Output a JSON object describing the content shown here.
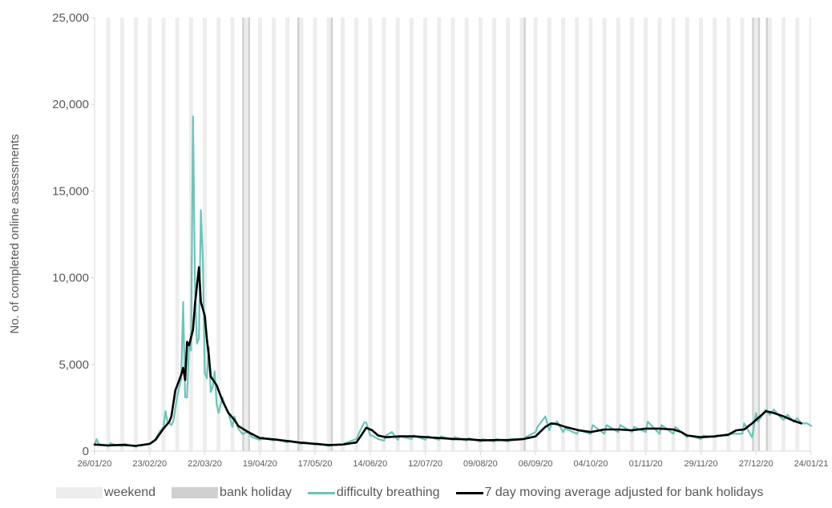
{
  "chart_data": {
    "type": "line",
    "ylabel": "No. of completed online assessments",
    "xlabel": "",
    "title": "",
    "ylim": [
      0,
      25000
    ],
    "yticks": [
      0,
      5000,
      10000,
      15000,
      20000,
      25000
    ],
    "ytick_labels": [
      "0",
      "5,000",
      "10,000",
      "15,000",
      "20,000",
      "25,000"
    ],
    "x_range": [
      "2020-01-26",
      "2021-01-24"
    ],
    "x_tick_dates": [
      "2020-01-26",
      "2020-02-23",
      "2020-03-22",
      "2020-04-19",
      "2020-05-17",
      "2020-06-14",
      "2020-07-12",
      "2020-08-09",
      "2020-09-06",
      "2020-10-04",
      "2020-11-01",
      "2020-11-29",
      "2020-12-27",
      "2021-01-24"
    ],
    "x_tick_labels": [
      "26/01/20",
      "23/02/20",
      "22/03/20",
      "19/04/20",
      "17/05/20",
      "14/06/20",
      "12/07/20",
      "09/08/20",
      "06/09/20",
      "04/10/20",
      "01/11/20",
      "29/11/20",
      "27/12/20",
      "24/01/21"
    ],
    "grid": false,
    "legend_position": "bottom",
    "weekend_shading": true,
    "bank_holidays": [
      "2020-04-10",
      "2020-04-13",
      "2020-05-08",
      "2020-05-25",
      "2020-08-31",
      "2020-12-25",
      "2020-12-28",
      "2021-01-01"
    ],
    "series": [
      {
        "name": "difficulty breathing",
        "color": "#6CC4BA",
        "points": [
          [
            "2020-01-26",
            350
          ],
          [
            "2020-01-27",
            700
          ],
          [
            "2020-01-28",
            420
          ],
          [
            "2020-01-29",
            380
          ],
          [
            "2020-02-02",
            300
          ],
          [
            "2020-02-03",
            450
          ],
          [
            "2020-02-05",
            380
          ],
          [
            "2020-02-09",
            300
          ],
          [
            "2020-02-10",
            420
          ],
          [
            "2020-02-16",
            260
          ],
          [
            "2020-02-17",
            350
          ],
          [
            "2020-02-19",
            330
          ],
          [
            "2020-02-23",
            400
          ],
          [
            "2020-02-24",
            500
          ],
          [
            "2020-02-26",
            700
          ],
          [
            "2020-02-28",
            1100
          ],
          [
            "2020-03-01",
            1400
          ],
          [
            "2020-03-02",
            2300
          ],
          [
            "2020-03-03",
            1700
          ],
          [
            "2020-03-05",
            1500
          ],
          [
            "2020-03-06",
            1700
          ],
          [
            "2020-03-08",
            3200
          ],
          [
            "2020-03-10",
            4200
          ],
          [
            "2020-03-11",
            8600
          ],
          [
            "2020-03-12",
            3100
          ],
          [
            "2020-03-13",
            3100
          ],
          [
            "2020-03-14",
            6200
          ],
          [
            "2020-03-15",
            5800
          ],
          [
            "2020-03-16",
            19300
          ],
          [
            "2020-03-17",
            9500
          ],
          [
            "2020-03-18",
            6200
          ],
          [
            "2020-03-19",
            6500
          ],
          [
            "2020-03-20",
            13900
          ],
          [
            "2020-03-21",
            11000
          ],
          [
            "2020-03-22",
            4500
          ],
          [
            "2020-03-23",
            4200
          ],
          [
            "2020-03-24",
            6000
          ],
          [
            "2020-03-25",
            3400
          ],
          [
            "2020-03-26",
            3700
          ],
          [
            "2020-03-27",
            4600
          ],
          [
            "2020-03-28",
            2700
          ],
          [
            "2020-03-29",
            2200
          ],
          [
            "2020-03-31",
            3100
          ],
          [
            "2020-04-01",
            2700
          ],
          [
            "2020-04-03",
            2200
          ],
          [
            "2020-04-05",
            1400
          ],
          [
            "2020-04-06",
            2000
          ],
          [
            "2020-04-08",
            1300
          ],
          [
            "2020-04-10",
            1000
          ],
          [
            "2020-04-13",
            1100
          ],
          [
            "2020-04-15",
            800
          ],
          [
            "2020-04-19",
            650
          ],
          [
            "2020-04-20",
            800
          ],
          [
            "2020-04-26",
            600
          ],
          [
            "2020-04-27",
            700
          ],
          [
            "2020-05-03",
            500
          ],
          [
            "2020-05-04",
            600
          ],
          [
            "2020-05-10",
            420
          ],
          [
            "2020-05-11",
            520
          ],
          [
            "2020-05-17",
            380
          ],
          [
            "2020-05-18",
            450
          ],
          [
            "2020-05-24",
            300
          ],
          [
            "2020-05-26",
            350
          ],
          [
            "2020-05-31",
            380
          ],
          [
            "2020-06-01",
            450
          ],
          [
            "2020-06-07",
            700
          ],
          [
            "2020-06-09",
            1200
          ],
          [
            "2020-06-11",
            1650
          ],
          [
            "2020-06-12",
            1650
          ],
          [
            "2020-06-14",
            900
          ],
          [
            "2020-06-15",
            900
          ],
          [
            "2020-06-18",
            700
          ],
          [
            "2020-06-21",
            600
          ],
          [
            "2020-06-22",
            900
          ],
          [
            "2020-06-25",
            1100
          ],
          [
            "2020-06-28",
            650
          ],
          [
            "2020-06-29",
            850
          ],
          [
            "2020-07-05",
            700
          ],
          [
            "2020-07-06",
            900
          ],
          [
            "2020-07-12",
            650
          ],
          [
            "2020-07-13",
            850
          ],
          [
            "2020-07-19",
            650
          ],
          [
            "2020-07-20",
            850
          ],
          [
            "2020-07-26",
            650
          ],
          [
            "2020-07-27",
            800
          ],
          [
            "2020-08-02",
            600
          ],
          [
            "2020-08-03",
            750
          ],
          [
            "2020-08-09",
            550
          ],
          [
            "2020-08-10",
            700
          ],
          [
            "2020-08-16",
            550
          ],
          [
            "2020-08-17",
            700
          ],
          [
            "2020-08-23",
            550
          ],
          [
            "2020-08-24",
            700
          ],
          [
            "2020-08-31",
            700
          ],
          [
            "2020-09-01",
            800
          ],
          [
            "2020-09-06",
            1100
          ],
          [
            "2020-09-07",
            1400
          ],
          [
            "2020-09-11",
            2000
          ],
          [
            "2020-09-13",
            1200
          ],
          [
            "2020-09-14",
            1500
          ],
          [
            "2020-09-17",
            1700
          ],
          [
            "2020-09-20",
            1100
          ],
          [
            "2020-09-21",
            1300
          ],
          [
            "2020-09-27",
            1000
          ],
          [
            "2020-09-28",
            1200
          ],
          [
            "2020-10-04",
            1000
          ],
          [
            "2020-10-05",
            1500
          ],
          [
            "2020-10-11",
            1000
          ],
          [
            "2020-10-12",
            1500
          ],
          [
            "2020-10-18",
            1100
          ],
          [
            "2020-10-19",
            1500
          ],
          [
            "2020-10-25",
            1100
          ],
          [
            "2020-10-26",
            1400
          ],
          [
            "2020-11-01",
            1100
          ],
          [
            "2020-11-02",
            1700
          ],
          [
            "2020-11-08",
            1000
          ],
          [
            "2020-11-09",
            1500
          ],
          [
            "2020-11-15",
            1000
          ],
          [
            "2020-11-16",
            1400
          ],
          [
            "2020-11-22",
            800
          ],
          [
            "2020-11-23",
            900
          ],
          [
            "2020-11-29",
            700
          ],
          [
            "2020-11-30",
            900
          ],
          [
            "2020-12-06",
            800
          ],
          [
            "2020-12-07",
            900
          ],
          [
            "2020-12-13",
            900
          ],
          [
            "2020-12-14",
            1000
          ],
          [
            "2020-12-20",
            1000
          ],
          [
            "2020-12-21",
            1600
          ],
          [
            "2020-12-25",
            800
          ],
          [
            "2020-12-26",
            1500
          ],
          [
            "2020-12-27",
            2200
          ],
          [
            "2020-12-28",
            1700
          ],
          [
            "2021-01-01",
            2400
          ],
          [
            "2021-01-03",
            2100
          ],
          [
            "2021-01-05",
            2400
          ],
          [
            "2021-01-08",
            2000
          ],
          [
            "2021-01-10",
            1800
          ],
          [
            "2021-01-12",
            2100
          ],
          [
            "2021-01-15",
            1700
          ],
          [
            "2021-01-17",
            1900
          ],
          [
            "2021-01-19",
            1600
          ],
          [
            "2021-01-22",
            1600
          ],
          [
            "2021-01-24",
            1450
          ]
        ]
      },
      {
        "name": "7 day moving average adjusted for bank holidays",
        "color": "#000000",
        "points": [
          [
            "2020-01-26",
            380
          ],
          [
            "2020-02-02",
            330
          ],
          [
            "2020-02-09",
            360
          ],
          [
            "2020-02-16",
            300
          ],
          [
            "2020-02-23",
            420
          ],
          [
            "2020-02-26",
            650
          ],
          [
            "2020-03-01",
            1300
          ],
          [
            "2020-03-04",
            1700
          ],
          [
            "2020-03-05",
            2000
          ],
          [
            "2020-03-07",
            3500
          ],
          [
            "2020-03-10",
            4400
          ],
          [
            "2020-03-11",
            4800
          ],
          [
            "2020-03-12",
            4100
          ],
          [
            "2020-03-13",
            6300
          ],
          [
            "2020-03-14",
            6100
          ],
          [
            "2020-03-16",
            7000
          ],
          [
            "2020-03-17",
            8500
          ],
          [
            "2020-03-19",
            10600
          ],
          [
            "2020-03-20",
            8600
          ],
          [
            "2020-03-22",
            7800
          ],
          [
            "2020-03-23",
            6500
          ],
          [
            "2020-03-24",
            5500
          ],
          [
            "2020-03-25",
            4300
          ],
          [
            "2020-03-28",
            3800
          ],
          [
            "2020-03-31",
            2900
          ],
          [
            "2020-04-03",
            2200
          ],
          [
            "2020-04-06",
            1800
          ],
          [
            "2020-04-08",
            1450
          ],
          [
            "2020-04-13",
            1100
          ],
          [
            "2020-04-19",
            750
          ],
          [
            "2020-04-26",
            680
          ],
          [
            "2020-05-03",
            580
          ],
          [
            "2020-05-10",
            480
          ],
          [
            "2020-05-17",
            420
          ],
          [
            "2020-05-24",
            350
          ],
          [
            "2020-05-31",
            380
          ],
          [
            "2020-06-07",
            500
          ],
          [
            "2020-06-10",
            1000
          ],
          [
            "2020-06-12",
            1350
          ],
          [
            "2020-06-15",
            1200
          ],
          [
            "2020-06-18",
            900
          ],
          [
            "2020-06-22",
            800
          ],
          [
            "2020-06-29",
            850
          ],
          [
            "2020-07-06",
            850
          ],
          [
            "2020-07-13",
            800
          ],
          [
            "2020-07-20",
            750
          ],
          [
            "2020-07-27",
            700
          ],
          [
            "2020-08-03",
            680
          ],
          [
            "2020-08-10",
            620
          ],
          [
            "2020-08-17",
            640
          ],
          [
            "2020-08-24",
            640
          ],
          [
            "2020-08-31",
            700
          ],
          [
            "2020-09-06",
            850
          ],
          [
            "2020-09-11",
            1400
          ],
          [
            "2020-09-14",
            1600
          ],
          [
            "2020-09-17",
            1550
          ],
          [
            "2020-09-21",
            1400
          ],
          [
            "2020-09-28",
            1200
          ],
          [
            "2020-10-04",
            1100
          ],
          [
            "2020-10-11",
            1250
          ],
          [
            "2020-10-18",
            1250
          ],
          [
            "2020-10-25",
            1200
          ],
          [
            "2020-11-01",
            1300
          ],
          [
            "2020-11-08",
            1300
          ],
          [
            "2020-11-15",
            1250
          ],
          [
            "2020-11-19",
            1100
          ],
          [
            "2020-11-22",
            900
          ],
          [
            "2020-11-29",
            800
          ],
          [
            "2020-12-06",
            850
          ],
          [
            "2020-12-13",
            950
          ],
          [
            "2020-12-17",
            1200
          ],
          [
            "2020-12-21",
            1250
          ],
          [
            "2020-12-25",
            1600
          ],
          [
            "2020-12-28",
            1900
          ],
          [
            "2021-01-01",
            2300
          ],
          [
            "2021-01-05",
            2200
          ],
          [
            "2021-01-10",
            2000
          ],
          [
            "2021-01-15",
            1750
          ],
          [
            "2021-01-19",
            1600
          ]
        ]
      }
    ]
  },
  "legend": {
    "weekend": "weekend",
    "bank_holiday": "bank holiday",
    "series_1": "difficulty breathing",
    "series_2": "7 day moving average adjusted for bank holidays"
  },
  "colors": {
    "weekend": "#EDEDED",
    "bank_holiday": "#D0D0D0",
    "axis_text": "#595959",
    "axis_line": "#D9D9D9"
  }
}
